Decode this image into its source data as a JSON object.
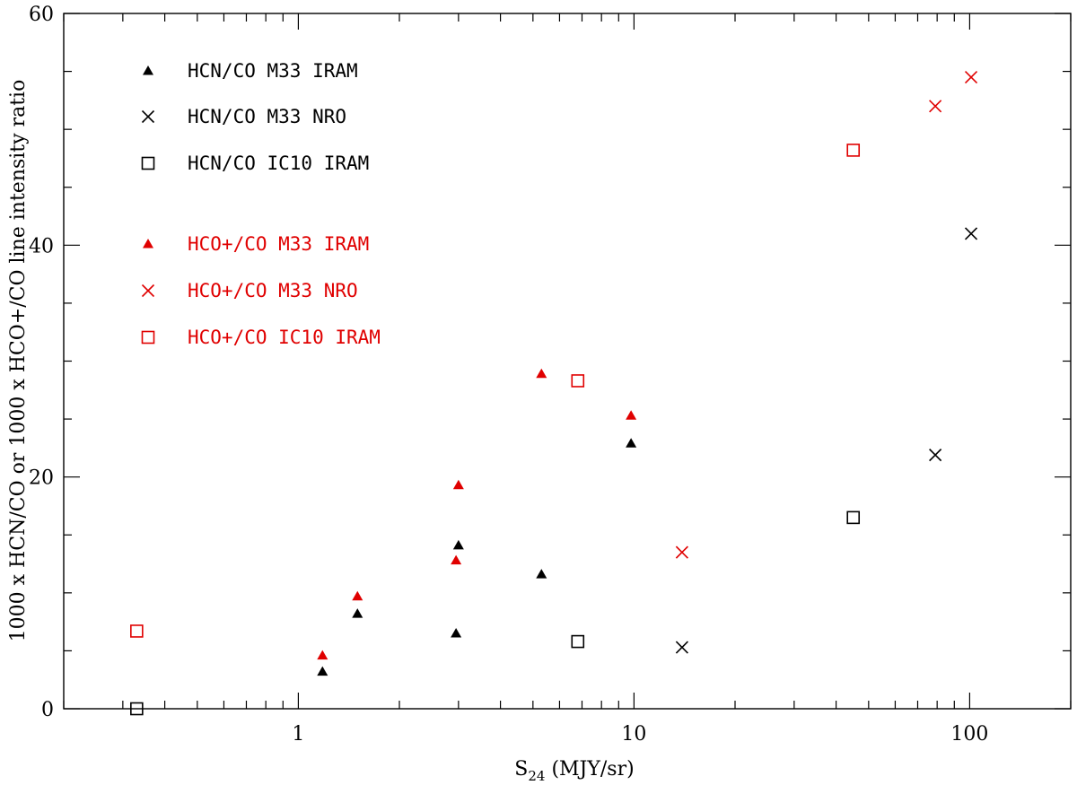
{
  "chart_data": {
    "type": "scatter",
    "xscale": "log",
    "xlim": [
      0.2,
      200
    ],
    "ylim": [
      0,
      60
    ],
    "xlabel_main": "S",
    "xlabel_sub": "24",
    "xlabel_rest": " (MJY/sr)",
    "ylabel": "1000 x HCN/CO or 1000 x HCO+/CO line intensity ratio",
    "x_ticks": [
      {
        "value": 1,
        "label": "1"
      },
      {
        "value": 10,
        "label": "10"
      },
      {
        "value": 100,
        "label": "100"
      }
    ],
    "y_ticks": [
      {
        "value": 0,
        "label": "0"
      },
      {
        "value": 20,
        "label": "20"
      },
      {
        "value": 40,
        "label": "40"
      },
      {
        "value": 60,
        "label": "60"
      }
    ],
    "grid": false,
    "legend_position": "top-left",
    "series": [
      {
        "name": "HCN/CO M33 IRAM",
        "marker": "triangle",
        "color": "#000000",
        "points": [
          [
            1.18,
            3.2
          ],
          [
            1.5,
            8.2
          ],
          [
            2.95,
            6.5
          ],
          [
            3.0,
            14.1
          ],
          [
            5.3,
            11.6
          ],
          [
            9.8,
            22.9
          ]
        ]
      },
      {
        "name": "HCN/CO M33 NRO",
        "marker": "cross",
        "color": "#000000",
        "points": [
          [
            13.9,
            5.3
          ],
          [
            79,
            21.9
          ],
          [
            101,
            41.0
          ]
        ]
      },
      {
        "name": "HCN/CO IC10 IRAM",
        "marker": "square",
        "color": "#000000",
        "points": [
          [
            0.33,
            0.0
          ],
          [
            6.8,
            5.8
          ],
          [
            45,
            16.5
          ]
        ]
      },
      {
        "name": "HCO+/CO M33 IRAM",
        "marker": "triangle",
        "color": "#e00000",
        "points": [
          [
            1.18,
            4.6
          ],
          [
            1.5,
            9.7
          ],
          [
            2.95,
            12.8
          ],
          [
            3.0,
            19.3
          ],
          [
            5.3,
            28.9
          ],
          [
            9.8,
            25.3
          ]
        ]
      },
      {
        "name": "HCO+/CO M33 NRO",
        "marker": "cross",
        "color": "#e00000",
        "points": [
          [
            13.9,
            13.5
          ],
          [
            79,
            52.0
          ],
          [
            101,
            54.5
          ]
        ]
      },
      {
        "name": "HCO+/CO IC10 IRAM",
        "marker": "square",
        "color": "#e00000",
        "points": [
          [
            0.33,
            6.7
          ],
          [
            6.8,
            28.3
          ],
          [
            45,
            48.2
          ]
        ]
      }
    ]
  }
}
